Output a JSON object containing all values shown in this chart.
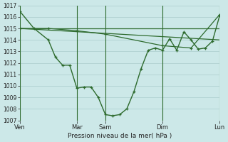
{
  "background_color": "#cce8e8",
  "grid_color": "#aacccc",
  "line_color": "#2d6a2d",
  "xlabel": "Pression niveau de la mer( hPa )",
  "ylim": [
    1007,
    1017
  ],
  "yticks": [
    1007,
    1008,
    1009,
    1010,
    1011,
    1012,
    1013,
    1014,
    1015,
    1016,
    1017
  ],
  "xtick_labels": [
    "Ven",
    "Mar",
    "Sam",
    "Dim",
    "Lun"
  ],
  "xtick_positions": [
    0,
    24,
    36,
    60,
    84
  ],
  "vline_positions": [
    24,
    36,
    60,
    84
  ],
  "xlim": [
    0,
    84
  ],
  "series1_x": [
    0,
    6,
    12,
    15,
    18,
    21,
    24,
    27,
    30,
    33,
    36,
    39,
    42,
    45,
    48,
    51,
    54,
    57,
    60,
    63,
    66,
    69,
    72,
    75,
    78,
    81,
    84
  ],
  "series1_y": [
    1016.5,
    1015.0,
    1014.0,
    1012.5,
    1011.8,
    1011.8,
    1009.8,
    1009.9,
    1009.9,
    1009.0,
    1007.5,
    1007.4,
    1007.5,
    1008.0,
    1009.5,
    1011.5,
    1013.1,
    1013.3,
    1013.1,
    1014.1,
    1013.1,
    1014.7,
    1014.0,
    1013.2,
    1013.3,
    1013.9,
    1016.1
  ],
  "series2_x": [
    0,
    12,
    24,
    36,
    60,
    72,
    84
  ],
  "series2_y": [
    1015.0,
    1015.0,
    1014.8,
    1014.5,
    1013.5,
    1013.3,
    1016.2
  ],
  "series3_x": [
    0,
    84
  ],
  "series3_y": [
    1015.0,
    1014.0
  ],
  "series4_x": [
    0,
    84
  ],
  "series4_y": [
    1015.0,
    1015.0
  ]
}
